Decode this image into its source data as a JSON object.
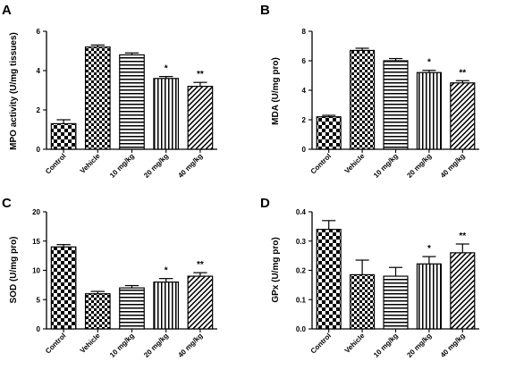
{
  "chart_data": [
    {
      "type": "bar",
      "panel": "A",
      "ylabel": "MPO activity (U/mg tissues)",
      "ylim": [
        0,
        6
      ],
      "yticks": [
        "0",
        "2",
        "4",
        "6"
      ],
      "categories": [
        "Control",
        "Vehicle",
        "10 mg/kg",
        "20 mg/kg",
        "40 mg/kg"
      ],
      "values": [
        1.3,
        5.2,
        4.8,
        3.6,
        3.2
      ],
      "errors": [
        0.2,
        0.1,
        0.1,
        0.1,
        0.2
      ],
      "significance": [
        "",
        "",
        "",
        "*",
        "**"
      ]
    },
    {
      "type": "bar",
      "panel": "B",
      "ylabel": "MDA (U/mg pro)",
      "ylim": [
        0,
        8
      ],
      "yticks": [
        "0",
        "2",
        "4",
        "6",
        "8"
      ],
      "categories": [
        "Control",
        "Vehicle",
        "10 mg/kg",
        "20 mg/kg",
        "40 mg/kg"
      ],
      "values": [
        2.2,
        6.7,
        6.0,
        5.2,
        4.5
      ],
      "errors": [
        0.1,
        0.15,
        0.15,
        0.15,
        0.15
      ],
      "significance": [
        "",
        "",
        "",
        "*",
        "**"
      ]
    },
    {
      "type": "bar",
      "panel": "C",
      "ylabel": "SOD (U/mg pro)",
      "ylim": [
        0,
        20
      ],
      "yticks": [
        "0",
        "5",
        "10",
        "15",
        "20"
      ],
      "categories": [
        "Control",
        "Vehicle",
        "10 mg/kg",
        "20 mg/kg",
        "40 mg/kg"
      ],
      "values": [
        14.0,
        6.0,
        7.0,
        8.0,
        9.0
      ],
      "errors": [
        0.4,
        0.4,
        0.4,
        0.6,
        0.6
      ],
      "significance": [
        "",
        "",
        "",
        "*",
        "**"
      ]
    },
    {
      "type": "bar",
      "panel": "D",
      "ylabel": "GPx (U/mg pro)",
      "ylim": [
        0,
        0.4
      ],
      "yticks": [
        "0.0",
        "0.1",
        "0.2",
        "0.3",
        "0.4"
      ],
      "categories": [
        "Control",
        "Vehicle",
        "10 mg/kg",
        "20 mg/kg",
        "40 mg/kg"
      ],
      "values": [
        0.34,
        0.185,
        0.18,
        0.222,
        0.26
      ],
      "errors": [
        0.03,
        0.05,
        0.03,
        0.025,
        0.03
      ],
      "significance": [
        "",
        "",
        "",
        "*",
        "**"
      ]
    }
  ]
}
